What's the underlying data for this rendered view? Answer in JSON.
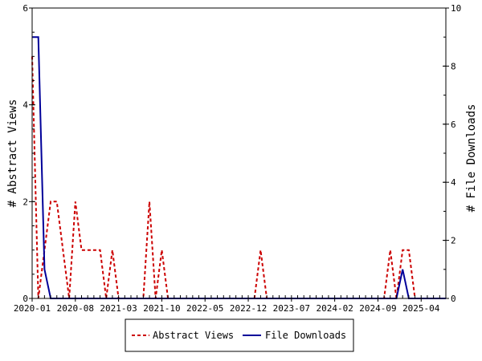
{
  "chart_data": {
    "type": "line",
    "title": "",
    "xlabel": "",
    "ylabel_left": "# Abstract Views",
    "ylabel_right": "# File Downloads",
    "x_start": "2020-01",
    "x_end": "2025-08",
    "x_tick_labels": [
      "2020-01",
      "2020-08",
      "2021-03",
      "2021-10",
      "2022-05",
      "2022-12",
      "2023-07",
      "2024-02",
      "2024-09",
      "2025-04"
    ],
    "ylim_left": [
      0,
      6
    ],
    "ylim_right": [
      0,
      10
    ],
    "y_ticks_left": [
      "0",
      "2",
      "4",
      "6"
    ],
    "y_ticks_right": [
      "0",
      "2",
      "4",
      "6",
      "8",
      "10"
    ],
    "grid": false,
    "legend_position": "bottom",
    "series": [
      {
        "name": "Abstract Views",
        "axis": "left",
        "color": "#cc0000",
        "dash": true,
        "points": [
          [
            "2020-01",
            5
          ],
          [
            "2020-02",
            0
          ],
          [
            "2020-03",
            1
          ],
          [
            "2020-04",
            2
          ],
          [
            "2020-05",
            2
          ],
          [
            "2020-06",
            1
          ],
          [
            "2020-07",
            0
          ],
          [
            "2020-08",
            2
          ],
          [
            "2020-09",
            1
          ],
          [
            "2020-10",
            1
          ],
          [
            "2020-11",
            1
          ],
          [
            "2020-12",
            1
          ],
          [
            "2021-01",
            0
          ],
          [
            "2021-02",
            1
          ],
          [
            "2021-03",
            0
          ],
          [
            "2021-04",
            0
          ],
          [
            "2021-05",
            0
          ],
          [
            "2021-06",
            0
          ],
          [
            "2021-07",
            0
          ],
          [
            "2021-08",
            2
          ],
          [
            "2021-09",
            0
          ],
          [
            "2021-10",
            1
          ],
          [
            "2021-11",
            0
          ],
          [
            "2021-12",
            0
          ],
          [
            "2022-01",
            0
          ],
          [
            "2022-02",
            0
          ],
          [
            "2022-03",
            0
          ],
          [
            "2022-04",
            0
          ],
          [
            "2022-05",
            0
          ],
          [
            "2022-06",
            0
          ],
          [
            "2022-07",
            0
          ],
          [
            "2022-08",
            0
          ],
          [
            "2022-09",
            0
          ],
          [
            "2022-10",
            0
          ],
          [
            "2022-11",
            0
          ],
          [
            "2022-12",
            0
          ],
          [
            "2023-01",
            0
          ],
          [
            "2023-02",
            1
          ],
          [
            "2023-03",
            0
          ],
          [
            "2023-04",
            0
          ],
          [
            "2023-05",
            0
          ],
          [
            "2023-06",
            0
          ],
          [
            "2023-07",
            0
          ],
          [
            "2023-08",
            0
          ],
          [
            "2023-09",
            0
          ],
          [
            "2023-10",
            0
          ],
          [
            "2023-11",
            0
          ],
          [
            "2023-12",
            0
          ],
          [
            "2024-01",
            0
          ],
          [
            "2024-02",
            0
          ],
          [
            "2024-03",
            0
          ],
          [
            "2024-04",
            0
          ],
          [
            "2024-05",
            0
          ],
          [
            "2024-06",
            0
          ],
          [
            "2024-07",
            0
          ],
          [
            "2024-08",
            0
          ],
          [
            "2024-09",
            0
          ],
          [
            "2024-10",
            0
          ],
          [
            "2024-11",
            1
          ],
          [
            "2024-12",
            0
          ],
          [
            "2025-01",
            1
          ],
          [
            "2025-02",
            1
          ],
          [
            "2025-03",
            0
          ],
          [
            "2025-04",
            0
          ],
          [
            "2025-05",
            0
          ],
          [
            "2025-06",
            0
          ],
          [
            "2025-07",
            0
          ],
          [
            "2025-08",
            0
          ]
        ]
      },
      {
        "name": "File Downloads",
        "axis": "right",
        "color": "#000099",
        "dash": false,
        "points": [
          [
            "2020-01",
            9
          ],
          [
            "2020-02",
            9
          ],
          [
            "2020-03",
            1
          ],
          [
            "2020-04",
            0
          ],
          [
            "2020-05",
            0
          ],
          [
            "2020-06",
            0
          ],
          [
            "2020-07",
            0
          ],
          [
            "2020-08",
            0
          ],
          [
            "2020-09",
            0
          ],
          [
            "2020-10",
            0
          ],
          [
            "2020-11",
            0
          ],
          [
            "2020-12",
            0
          ],
          [
            "2021-01",
            0
          ],
          [
            "2021-06",
            0
          ],
          [
            "2021-12",
            0
          ],
          [
            "2022-06",
            0
          ],
          [
            "2022-12",
            0
          ],
          [
            "2023-06",
            0
          ],
          [
            "2023-12",
            0
          ],
          [
            "2024-06",
            0
          ],
          [
            "2024-11",
            0
          ],
          [
            "2024-12",
            0
          ],
          [
            "2025-01",
            1
          ],
          [
            "2025-02",
            0
          ],
          [
            "2025-03",
            0
          ],
          [
            "2025-04",
            0
          ],
          [
            "2025-05",
            0
          ],
          [
            "2025-06",
            0
          ],
          [
            "2025-07",
            0
          ],
          [
            "2025-08",
            0
          ]
        ]
      }
    ]
  }
}
